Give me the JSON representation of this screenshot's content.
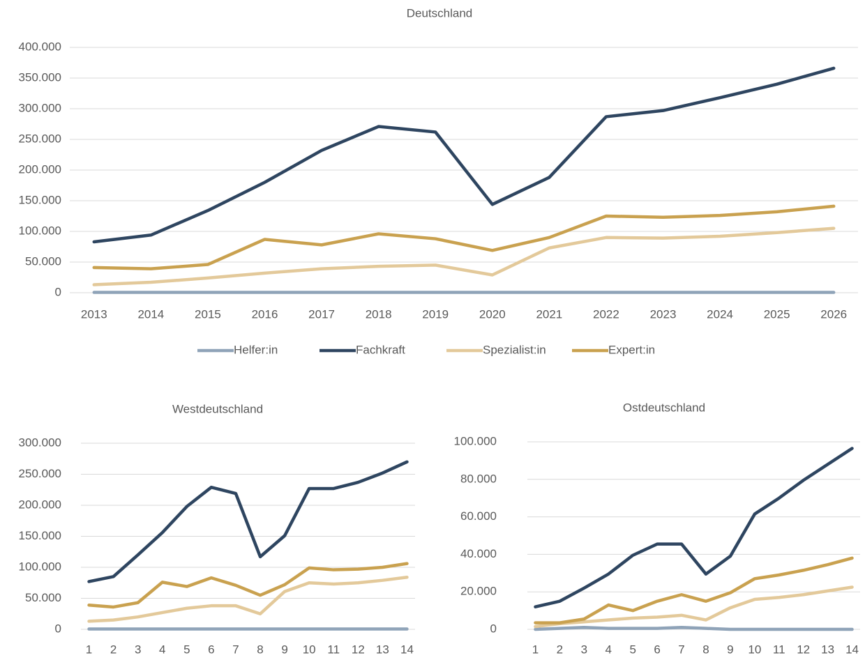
{
  "chart_data": [
    {
      "type": "line",
      "title": "Deutschland",
      "legend": true,
      "legend_position": "bottom",
      "categories": [
        "2013",
        "2014",
        "2015",
        "2016",
        "2017",
        "2018",
        "2019",
        "2020",
        "2021",
        "2022",
        "2023",
        "2024",
        "2025",
        "2026"
      ],
      "ylim": [
        0,
        400000
      ],
      "yticks": [
        0,
        {
          "value": 50000,
          "label": "50.000"
        },
        {
          "value": 100000,
          "label": "100.000"
        },
        {
          "value": 150000,
          "label": "150.000"
        },
        {
          "value": 200000,
          "label": "200.000"
        },
        {
          "value": 250000,
          "label": "250.000"
        },
        {
          "value": 300000,
          "label": "300.000"
        },
        {
          "value": 350000,
          "label": "350.000"
        },
        {
          "value": 400000,
          "label": "400.000"
        }
      ],
      "grid": true,
      "series": [
        {
          "name": "Helfer:in",
          "color": "#8fa3b8",
          "values": [
            500,
            500,
            500,
            500,
            500,
            500,
            500,
            500,
            500,
            500,
            500,
            500,
            500,
            500
          ]
        },
        {
          "name": "Fachkraft",
          "color": "#2e4560",
          "values": [
            83000,
            94000,
            134000,
            180000,
            232000,
            271000,
            262000,
            144000,
            188000,
            287000,
            297000,
            318000,
            340000,
            366000
          ]
        },
        {
          "name": "Spezialist:in",
          "color": "#e3c99a",
          "values": [
            13000,
            17000,
            24000,
            32000,
            39000,
            43000,
            45000,
            29000,
            73000,
            90000,
            89000,
            92000,
            98000,
            105000
          ]
        },
        {
          "name": "Expert:in",
          "color": "#c9a14f",
          "values": [
            41000,
            39000,
            46000,
            87000,
            78000,
            96000,
            88000,
            69000,
            90000,
            125000,
            123000,
            126000,
            132000,
            141000
          ]
        }
      ]
    },
    {
      "type": "line",
      "title": "Westdeutschland",
      "legend": false,
      "categories": [
        "1",
        "2",
        "3",
        "4",
        "5",
        "6",
        "7",
        "8",
        "9",
        "10",
        "11",
        "12",
        "13",
        "14"
      ],
      "ylim": [
        0,
        300000
      ],
      "yticks": [
        0,
        {
          "value": 50000,
          "label": "50.000"
        },
        {
          "value": 100000,
          "label": "100.000"
        },
        {
          "value": 150000,
          "label": "150.000"
        },
        {
          "value": 200000,
          "label": "200.000"
        },
        {
          "value": 250000,
          "label": "250.000"
        },
        {
          "value": 300000,
          "label": "300.000"
        }
      ],
      "grid": true,
      "series": [
        {
          "name": "Helfer:in",
          "color": "#8fa3b8",
          "values": [
            500,
            500,
            500,
            500,
            500,
            500,
            500,
            500,
            500,
            500,
            500,
            500,
            500,
            500
          ]
        },
        {
          "name": "Fachkraft",
          "color": "#2e4560",
          "values": [
            77000,
            85000,
            120000,
            156000,
            198000,
            229000,
            219000,
            117000,
            151000,
            227000,
            227000,
            237000,
            252000,
            270000
          ]
        },
        {
          "name": "Spezialist:in",
          "color": "#e3c99a",
          "values": [
            13000,
            15000,
            20000,
            27000,
            34000,
            38000,
            38000,
            25000,
            61000,
            75000,
            73000,
            75000,
            79000,
            84000
          ]
        },
        {
          "name": "Expert:in",
          "color": "#c9a14f",
          "values": [
            39000,
            36000,
            43000,
            76000,
            69000,
            83000,
            71000,
            55000,
            72000,
            99000,
            96000,
            97000,
            100000,
            106000
          ]
        }
      ]
    },
    {
      "type": "line",
      "title": "Ostdeutschland",
      "legend": false,
      "categories": [
        "1",
        "2",
        "3",
        "4",
        "5",
        "6",
        "7",
        "8",
        "9",
        "10",
        "11",
        "12",
        "13",
        "14"
      ],
      "ylim": [
        0,
        100000
      ],
      "yticks": [
        0,
        {
          "value": 20000,
          "label": "20.000"
        },
        {
          "value": 40000,
          "label": "40.000"
        },
        {
          "value": 60000,
          "label": "60.000"
        },
        {
          "value": 80000,
          "label": "80.000"
        },
        {
          "value": 100000,
          "label": "100.000"
        }
      ],
      "grid": true,
      "series": [
        {
          "name": "Helfer:in",
          "color": "#8fa3b8",
          "values": [
            0,
            500,
            1000,
            500,
            500,
            500,
            1000,
            500,
            0,
            0,
            0,
            0,
            0,
            0
          ]
        },
        {
          "name": "Fachkraft",
          "color": "#2e4560",
          "values": [
            12000,
            15000,
            22000,
            29500,
            39500,
            45500,
            45500,
            29500,
            39000,
            61500,
            70000,
            79500,
            88000,
            96500
          ]
        },
        {
          "name": "Spezialist:in",
          "color": "#e3c99a",
          "values": [
            1500,
            3000,
            4000,
            5000,
            6000,
            6500,
            7500,
            5000,
            11500,
            16000,
            17000,
            18500,
            20500,
            22500
          ]
        },
        {
          "name": "Expert:in",
          "color": "#c9a14f",
          "values": [
            3500,
            3500,
            5500,
            13000,
            10000,
            15000,
            18500,
            15000,
            19500,
            27000,
            29000,
            31500,
            34500,
            38000
          ]
        }
      ]
    }
  ]
}
